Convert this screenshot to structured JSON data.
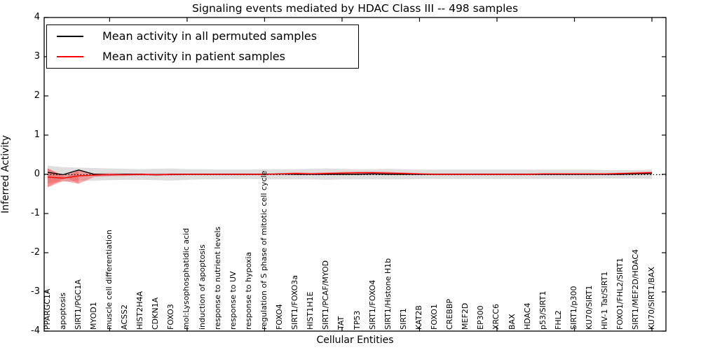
{
  "figure": {
    "title": "Signaling events mediated by HDAC Class III -- 498 samples",
    "xlabel": "Cellular Entities",
    "ylabel": "Inferred Activity"
  },
  "legend": {
    "items": [
      {
        "label": "Mean activity in all permuted samples",
        "color": "#000000"
      },
      {
        "label": "Mean activity in patient samples",
        "color": "#ff0000"
      }
    ]
  },
  "colors": {
    "permuted_line": "#000000",
    "patient_line": "#ff0000",
    "permuted_band": "rgba(0,0,0,0.13)",
    "patient_band": "rgba(255,0,0,0.30)",
    "patient_band_overlap": "rgba(255,0,0,0.22)",
    "axis": "#000000"
  },
  "chart_data": {
    "type": "line",
    "title": "Signaling events mediated by HDAC Class III -- 498 samples",
    "xlabel": "Cellular Entities",
    "ylabel": "Inferred Activity",
    "ylim": [
      -4,
      4
    ],
    "yticks": [
      4,
      3,
      2,
      1,
      0,
      -1,
      -2,
      -3,
      -4
    ],
    "grid": false,
    "legend_position": "upper-left",
    "zero_line": {
      "y": 0,
      "style": "dotted",
      "color": "#000000"
    },
    "categories": [
      "PPARGC1A",
      "apoptosis",
      "SIRT1/PGC1A",
      "MYOD1",
      "muscle cell differentiation",
      "ACSS2",
      "HIST2H4A",
      "CDKN1A",
      "FOXO3",
      "mol:Lysophosphatidic acid",
      "induction of apoptosis",
      "response to nutrient levels",
      "response to UV",
      "response to hypoxia",
      "regulation of S phase of mitotic cell cycle",
      "FOXO4",
      "SIRT1/FOXO3a",
      "HIST1H1E",
      "SIRT1/PCAF/MYOD",
      "TAT",
      "TP53",
      "SIRT1/FOXO4",
      "SIRT1/Histone H1b",
      "SIRT1",
      "KAT2B",
      "FOXO1",
      "CREBBP",
      "MEF2D",
      "EP300",
      "XRCC6",
      "BAX",
      "HDAC4",
      "p53/SIRT1",
      "FHL2",
      "SIRT1/p300",
      "KU70/SIRT1",
      "HIV-1 Tat/SIRT1",
      "FOXO1/FHL2/SIRT1",
      "SIRT1/MEF2D/HDAC4",
      "KU70/SIRT1/BAX"
    ],
    "xtick_indices": [
      4,
      9,
      14,
      19,
      24,
      29,
      34,
      39
    ],
    "series": [
      {
        "name": "Mean activity in all permuted samples",
        "color": "#000000",
        "values": [
          0.05,
          -0.01,
          0.11,
          0.0,
          -0.01,
          0.0,
          0.0,
          -0.01,
          0.0,
          0.0,
          0.0,
          0.0,
          0.0,
          0.0,
          0.0,
          0.01,
          0.0,
          0.0,
          0.0,
          0.0,
          0.0,
          0.01,
          0.0,
          0.0,
          0.0,
          0.0,
          0.0,
          0.0,
          0.0,
          0.0,
          0.0,
          0.0,
          0.0,
          0.0,
          0.0,
          0.0,
          0.0,
          0.0,
          0.01,
          0.02
        ]
      },
      {
        "name": "Mean activity in patient samples",
        "color": "#ff0000",
        "values": [
          -0.07,
          -0.1,
          -0.04,
          -0.02,
          -0.01,
          -0.01,
          0.0,
          -0.01,
          0.0,
          0.0,
          0.0,
          0.0,
          0.0,
          0.0,
          0.0,
          0.01,
          0.02,
          0.01,
          0.02,
          0.03,
          0.04,
          0.04,
          0.03,
          0.02,
          0.01,
          0.0,
          0.0,
          0.0,
          0.0,
          0.0,
          0.0,
          0.0,
          0.01,
          0.01,
          0.01,
          0.01,
          0.01,
          0.02,
          0.03,
          0.04
        ]
      }
    ],
    "bands": [
      {
        "name": "permuted-sample-range",
        "color": "rgba(0,0,0,0.13)",
        "upper": [
          0.22,
          0.18,
          0.17,
          0.16,
          0.15,
          0.14,
          0.13,
          0.14,
          0.15,
          0.13,
          0.13,
          0.12,
          0.12,
          0.12,
          0.13,
          0.13,
          0.13,
          0.14,
          0.15,
          0.14,
          0.13,
          0.13,
          0.14,
          0.13,
          0.12,
          0.12,
          0.12,
          0.12,
          0.12,
          0.12,
          0.12,
          0.12,
          0.12,
          0.12,
          0.12,
          0.12,
          0.11,
          0.11,
          0.11,
          0.12
        ],
        "lower": [
          -0.23,
          -0.19,
          -0.17,
          -0.16,
          -0.15,
          -0.14,
          -0.14,
          -0.15,
          -0.16,
          -0.14,
          -0.13,
          -0.13,
          -0.12,
          -0.12,
          -0.13,
          -0.13,
          -0.13,
          -0.13,
          -0.14,
          -0.13,
          -0.13,
          -0.13,
          -0.13,
          -0.13,
          -0.12,
          -0.12,
          -0.12,
          -0.12,
          -0.12,
          -0.12,
          -0.12,
          -0.12,
          -0.12,
          -0.12,
          -0.12,
          -0.12,
          -0.11,
          -0.11,
          -0.11,
          -0.12
        ]
      },
      {
        "name": "patient-sample-range",
        "color": "rgba(255,0,0,0.30)",
        "upper": [
          0.15,
          -0.03,
          0.1,
          0.02,
          0.03,
          0.02,
          0.02,
          0.02,
          0.02,
          0.02,
          0.02,
          0.02,
          0.02,
          0.02,
          0.02,
          0.03,
          0.05,
          0.04,
          0.05,
          0.06,
          0.07,
          0.07,
          0.06,
          0.05,
          0.03,
          0.02,
          0.02,
          0.02,
          0.02,
          0.02,
          0.02,
          0.02,
          0.03,
          0.03,
          0.03,
          0.03,
          0.03,
          0.04,
          0.06,
          0.07
        ],
        "lower": [
          -0.33,
          -0.17,
          -0.24,
          -0.07,
          -0.05,
          -0.04,
          -0.03,
          -0.04,
          -0.03,
          -0.02,
          -0.02,
          -0.02,
          -0.02,
          -0.02,
          -0.02,
          -0.01,
          -0.01,
          -0.01,
          -0.01,
          0.0,
          0.01,
          0.01,
          0.0,
          -0.01,
          -0.01,
          -0.02,
          -0.02,
          -0.02,
          -0.02,
          -0.02,
          -0.02,
          -0.02,
          -0.01,
          -0.01,
          -0.01,
          -0.01,
          -0.01,
          0.0,
          0.0,
          0.01
        ]
      }
    ]
  }
}
